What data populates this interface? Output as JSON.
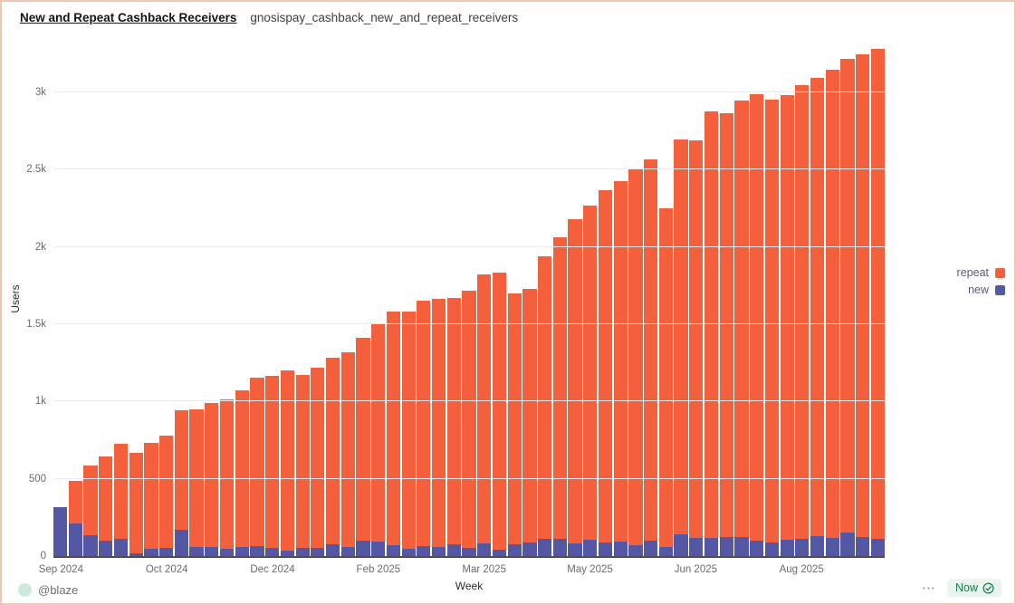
{
  "header": {
    "title": "New and Repeat Cashback Receivers",
    "subtitle": "gnosispay_cashback_new_and_repeat_receivers"
  },
  "chart_data": {
    "type": "bar",
    "stacked": true,
    "title": "New and Repeat Cashback Receivers",
    "xlabel": "Week",
    "ylabel": "Users",
    "ylim": [
      0,
      3322
    ],
    "grid": true,
    "legend_position": "right",
    "legend": [
      "repeat",
      "new"
    ],
    "yticks": [
      {
        "value": 0,
        "label": "0"
      },
      {
        "value": 500,
        "label": "500"
      },
      {
        "value": 1000,
        "label": "1k"
      },
      {
        "value": 1500,
        "label": "1.5k"
      },
      {
        "value": 2000,
        "label": "2k"
      },
      {
        "value": 2500,
        "label": "2.5k"
      },
      {
        "value": 3000,
        "label": "3k"
      }
    ],
    "x_ticks": [
      {
        "index": 0,
        "label": "Sep 2024"
      },
      {
        "index": 7,
        "label": "Oct 2024"
      },
      {
        "index": 14,
        "label": "Dec 2024"
      },
      {
        "index": 21,
        "label": "Feb 2025"
      },
      {
        "index": 28,
        "label": "Mar 2025"
      },
      {
        "index": 35,
        "label": "May 2025"
      },
      {
        "index": 42,
        "label": "Jun 2025"
      },
      {
        "index": 49,
        "label": "Aug 2025"
      }
    ],
    "categories": [
      "2024-09-09",
      "2024-09-16",
      "2024-09-23",
      "2024-09-30",
      "2024-10-07",
      "2024-10-14",
      "2024-10-21",
      "2024-10-28",
      "2024-11-04",
      "2024-11-11",
      "2024-11-18",
      "2024-11-25",
      "2024-12-02",
      "2024-12-09",
      "2024-12-16",
      "2024-12-23",
      "2024-12-30",
      "2025-01-06",
      "2025-01-13",
      "2025-01-20",
      "2025-01-27",
      "2025-02-03",
      "2025-02-10",
      "2025-02-17",
      "2025-02-24",
      "2025-03-03",
      "2025-03-10",
      "2025-03-17",
      "2025-03-24",
      "2025-03-31",
      "2025-04-07",
      "2025-04-14",
      "2025-04-21",
      "2025-04-28",
      "2025-05-05",
      "2025-05-12",
      "2025-05-19",
      "2025-05-26",
      "2025-06-02",
      "2025-06-09",
      "2025-06-16",
      "2025-06-23",
      "2025-06-30",
      "2025-07-07",
      "2025-07-14",
      "2025-07-21",
      "2025-07-28",
      "2025-08-04",
      "2025-08-11",
      "2025-08-18",
      "2025-08-25",
      "2025-09-01",
      "2025-09-08",
      "2025-09-15",
      "2025-09-22"
    ],
    "series": [
      {
        "name": "new",
        "color": "#5457a3",
        "values": [
          318,
          211,
          135,
          101,
          113,
          20,
          47,
          51,
          172,
          60,
          58,
          47,
          60,
          64,
          51,
          37,
          51,
          55,
          74,
          60,
          98,
          92,
          69,
          49,
          63,
          59,
          74,
          55,
          82,
          39,
          74,
          88,
          110,
          113,
          84,
          106,
          90,
          94,
          70,
          100,
          60,
          139,
          119,
          120,
          125,
          125,
          101,
          86,
          106,
          111,
          131,
          115,
          151,
          125,
          111
        ]
      },
      {
        "name": "repeat",
        "color": "#f4603c",
        "values": [
          0,
          276,
          453,
          546,
          612,
          650,
          684,
          728,
          770,
          888,
          931,
          965,
          1013,
          1093,
          1114,
          1163,
          1123,
          1163,
          1207,
          1260,
          1312,
          1406,
          1512,
          1532,
          1591,
          1603,
          1596,
          1664,
          1741,
          1794,
          1626,
          1641,
          1827,
          1948,
          2096,
          2159,
          2279,
          2331,
          2437,
          2466,
          2193,
          2559,
          2570,
          2760,
          2743,
          2822,
          2889,
          2870,
          2876,
          2939,
          2962,
          3033,
          3065,
          3121,
          3168
        ]
      }
    ]
  },
  "footer": {
    "author": "@blaze",
    "menu_label": "⋯",
    "status_label": "Now"
  },
  "colors": {
    "repeat": "#f4603c",
    "new": "#5457a3",
    "page_border": "#f3c4b1",
    "badge_bg": "#e9f5ee",
    "badge_text": "#1b7b4e",
    "gridline": "#ededf1",
    "axis_line": "#4b4c55",
    "avatar_bg": "#cfe9dd"
  }
}
